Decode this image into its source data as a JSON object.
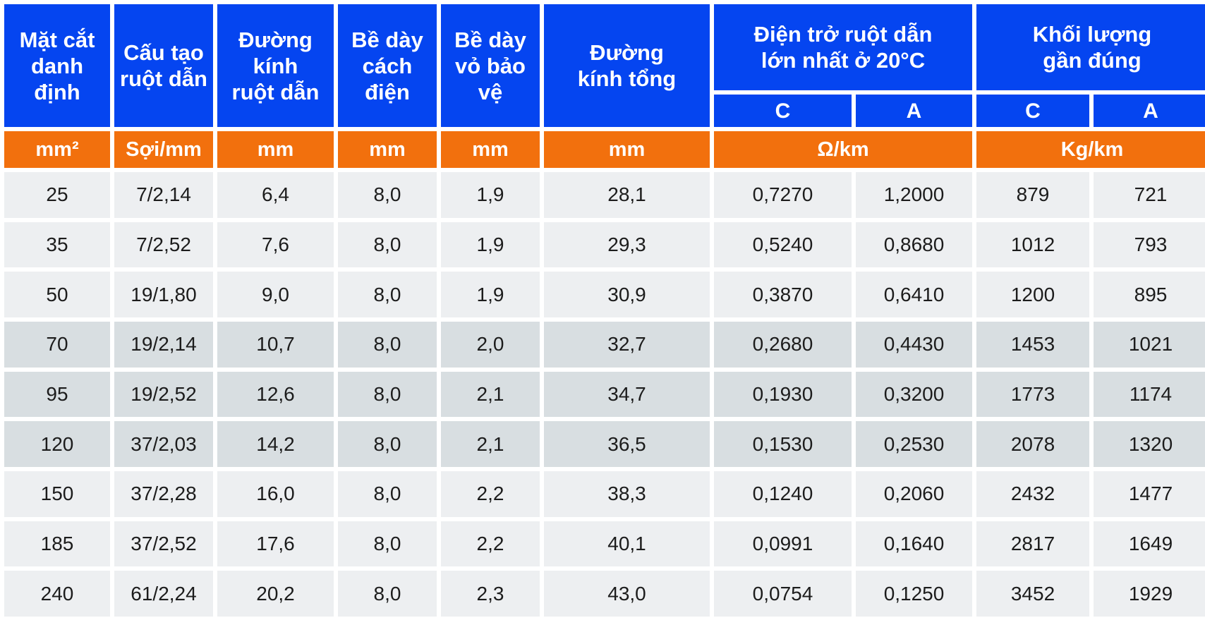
{
  "table": {
    "headers": {
      "col_labels": [
        "Mặt cắt\ndanh\nđịnh",
        "Cấu tạo\nruột dẫn",
        "Đường kính\nruột dẫn",
        "Bề dày\ncách điện",
        "Bề dày\nvỏ bảo vệ",
        "Đường\nkính tổng"
      ],
      "group_labels": [
        "Điện trở ruột dẫn\nlớn nhất ở 20°C",
        "Khối lượng\ngần đúng"
      ],
      "sub_labels": [
        "C",
        "A",
        "C",
        "A"
      ],
      "units": [
        "mm²",
        "Sợi/mm",
        "mm",
        "mm",
        "mm",
        "mm",
        "Ω/km",
        "Kg/km"
      ]
    },
    "rows": [
      [
        "25",
        "7/2,14",
        "6,4",
        "8,0",
        "1,9",
        "28,1",
        "0,7270",
        "1,2000",
        "879",
        "721"
      ],
      [
        "35",
        "7/2,52",
        "7,6",
        "8,0",
        "1,9",
        "29,3",
        "0,5240",
        "0,8680",
        "1012",
        "793"
      ],
      [
        "50",
        "19/1,80",
        "9,0",
        "8,0",
        "1,9",
        "30,9",
        "0,3870",
        "0,6410",
        "1200",
        "895"
      ],
      [
        "70",
        "19/2,14",
        "10,7",
        "8,0",
        "2,0",
        "32,7",
        "0,2680",
        "0,4430",
        "1453",
        "1021"
      ],
      [
        "95",
        "19/2,52",
        "12,6",
        "8,0",
        "2,1",
        "34,7",
        "0,1930",
        "0,3200",
        "1773",
        "1174"
      ],
      [
        "120",
        "37/2,03",
        "14,2",
        "8,0",
        "2,1",
        "36,5",
        "0,1530",
        "0,2530",
        "2078",
        "1320"
      ],
      [
        "150",
        "37/2,28",
        "16,0",
        "8,0",
        "2,2",
        "38,3",
        "0,1240",
        "0,2060",
        "2432",
        "1477"
      ],
      [
        "185",
        "37/2,52",
        "17,6",
        "8,0",
        "2,2",
        "40,1",
        "0,0991",
        "0,1640",
        "2817",
        "1649"
      ],
      [
        "240",
        "61/2,24",
        "20,2",
        "8,0",
        "2,3",
        "43,0",
        "0,0754",
        "0,1250",
        "3452",
        "1929"
      ]
    ]
  },
  "style": {
    "header_bg": "#0545f0",
    "unit_bg": "#f2700d",
    "header_text": "#ffffff",
    "cell_text": "#1c1c1c",
    "row_light": "#edeff1",
    "row_dark": "#d8dee1",
    "row_shading": [
      "light",
      "light",
      "light",
      "dark",
      "dark",
      "dark",
      "light",
      "light",
      "light"
    ]
  }
}
